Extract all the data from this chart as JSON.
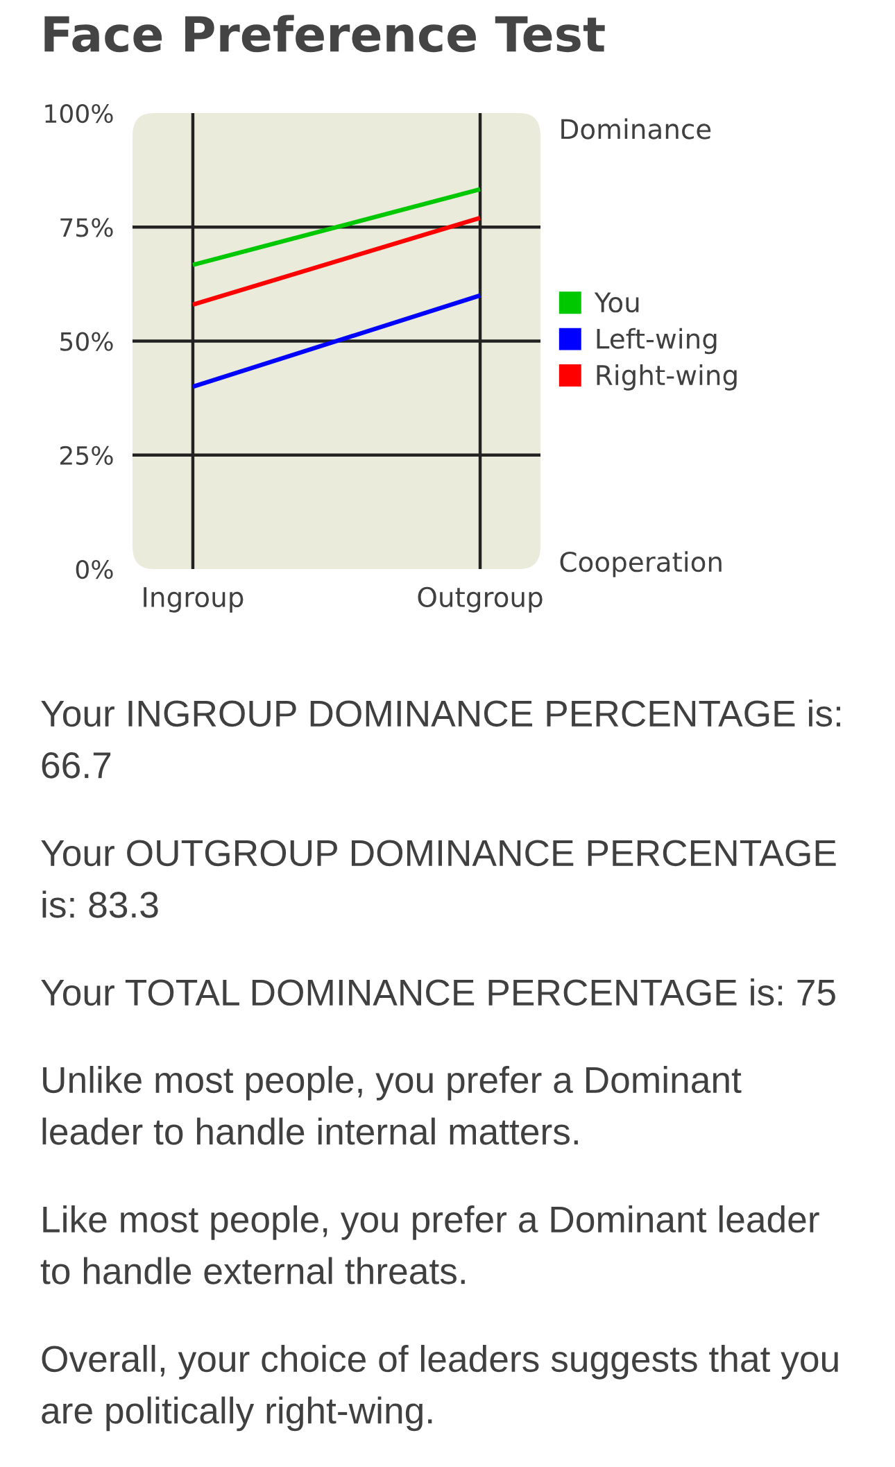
{
  "chart_data": {
    "type": "line",
    "title": "Face Preference Test",
    "categories": [
      "Ingroup",
      "Outgroup"
    ],
    "series": [
      {
        "name": "You",
        "color": "#00c800",
        "values": [
          66.7,
          83.3
        ]
      },
      {
        "name": "Left-wing",
        "color": "#0000ff",
        "values": [
          40,
          60
        ]
      },
      {
        "name": "Right-wing",
        "color": "#ff0000",
        "values": [
          58,
          77
        ]
      }
    ],
    "ylim": [
      0,
      100
    ],
    "yticks": [
      {
        "value": 0,
        "label": "0%"
      },
      {
        "value": 25,
        "label": "25%"
      },
      {
        "value": 50,
        "label": "50%"
      },
      {
        "value": 75,
        "label": "75%"
      },
      {
        "value": 100,
        "label": "100%"
      }
    ],
    "grid": true,
    "legend": "right",
    "annotations": [
      "Dominance",
      "Cooperation",
      "Your INGROUP DOMINANCE PERCENTAGE is: 66.7",
      "Your OUTGROUP DOMINANCE PERCENTAGE is: 83.3",
      "Your TOTAL DOMINANCE PERCENTAGE is: 75",
      "Unlike most people, you prefer a Dominant leader to handle internal matters.",
      "Like most people, you prefer a Dominant leader to handle external threats.",
      "Overall, your choice of leaders suggests that you are politically right-wing."
    ]
  }
}
